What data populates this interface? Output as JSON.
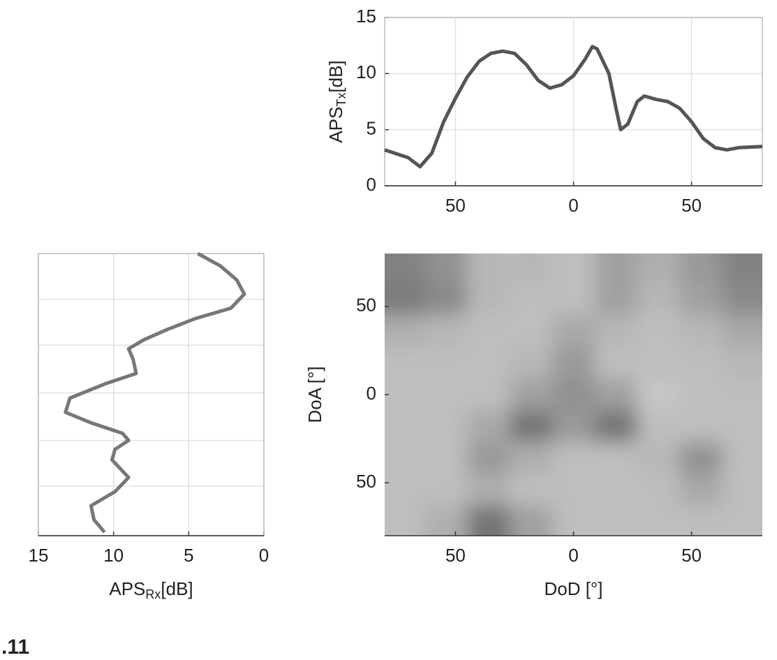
{
  "chart_data": [
    {
      "type": "line",
      "ylabel": {
        "main": "APS",
        "sub": "Tx",
        "unit": "[dB]"
      },
      "x": [
        -80,
        -70,
        -65,
        -60,
        -55,
        -50,
        -45,
        -40,
        -35,
        -30,
        -25,
        -20,
        -15,
        -10,
        -5,
        0,
        5,
        8,
        10,
        15,
        18,
        20,
        23,
        27,
        30,
        35,
        40,
        45,
        50,
        55,
        60,
        65,
        70,
        80
      ],
      "values": [
        3.2,
        2.5,
        1.7,
        2.9,
        5.7,
        7.8,
        9.7,
        11.1,
        11.8,
        12.0,
        11.8,
        10.8,
        9.4,
        8.7,
        9.0,
        9.8,
        11.3,
        12.4,
        12.2,
        10.0,
        6.9,
        5.0,
        5.5,
        7.5,
        8.0,
        7.7,
        7.5,
        6.9,
        5.7,
        4.2,
        3.4,
        3.2,
        3.4,
        3.5
      ],
      "color": "#555555",
      "xlim": [
        -80,
        80
      ],
      "ylim": [
        0,
        15
      ],
      "xticks": [
        {
          "value": -50,
          "label": "50"
        },
        0,
        50
      ],
      "yticks": [
        0,
        5,
        10,
        15
      ],
      "grid": true
    },
    {
      "type": "line",
      "orientation": "vertical",
      "xlabel": {
        "main": "APS",
        "sub": "Rx",
        "unit": "[dB]"
      },
      "x": [
        80,
        73,
        65,
        57,
        49,
        43,
        37,
        31,
        26,
        20,
        12,
        6,
        -2,
        -10,
        -16,
        -22,
        -26,
        -31,
        -37,
        -47,
        -55,
        -63,
        -71,
        -78
      ],
      "values": [
        4.4,
        2.9,
        1.8,
        1.3,
        2.2,
        4.6,
        6.4,
        8.0,
        9.0,
        8.7,
        8.5,
        10.6,
        12.9,
        13.2,
        11.5,
        9.4,
        9.0,
        9.9,
        10.1,
        9.0,
        9.9,
        11.5,
        11.3,
        10.6
      ],
      "color": "#777777",
      "xlim": [
        -80,
        80
      ],
      "ylim": [
        15,
        0
      ],
      "yticks": [
        15,
        10,
        5,
        0
      ],
      "grid_positions": [
        54,
        28,
        1,
        -26,
        -52
      ],
      "grid": true
    },
    {
      "type": "heatmap",
      "xlabel": "DoD [°]",
      "ylabel": "DoA [°]",
      "x": [
        -72,
        -54,
        -36,
        -18,
        0,
        18,
        36,
        54,
        72
      ],
      "y": [
        72,
        54,
        36,
        18,
        0,
        -18,
        -36,
        -54,
        -72
      ],
      "z": [
        [
          0.7,
          0.6,
          0.35,
          0.35,
          0.3,
          0.5,
          0.4,
          0.55,
          0.7
        ],
        [
          0.75,
          0.65,
          0.35,
          0.3,
          0.3,
          0.5,
          0.35,
          0.5,
          0.65
        ],
        [
          0.4,
          0.35,
          0.3,
          0.3,
          0.45,
          0.35,
          0.3,
          0.35,
          0.45
        ],
        [
          0.3,
          0.3,
          0.3,
          0.35,
          0.55,
          0.3,
          0.3,
          0.3,
          0.35
        ],
        [
          0.3,
          0.3,
          0.3,
          0.5,
          0.6,
          0.5,
          0.25,
          0.3,
          0.3
        ],
        [
          0.3,
          0.3,
          0.45,
          0.8,
          0.55,
          0.8,
          0.3,
          0.3,
          0.3
        ],
        [
          0.3,
          0.3,
          0.55,
          0.4,
          0.3,
          0.3,
          0.35,
          0.6,
          0.3
        ],
        [
          0.3,
          0.3,
          0.4,
          0.3,
          0.3,
          0.3,
          0.3,
          0.45,
          0.3
        ],
        [
          0.3,
          0.4,
          0.8,
          0.5,
          0.3,
          0.3,
          0.3,
          0.3,
          0.3
        ]
      ],
      "xlim": [
        -80,
        80
      ],
      "ylim": [
        -80,
        80
      ],
      "xticks": [
        {
          "value": -50,
          "label": "50"
        },
        0,
        50
      ],
      "yticks": [
        {
          "value": -50,
          "label": "50"
        },
        0,
        50
      ]
    }
  ],
  "caption": ".11"
}
